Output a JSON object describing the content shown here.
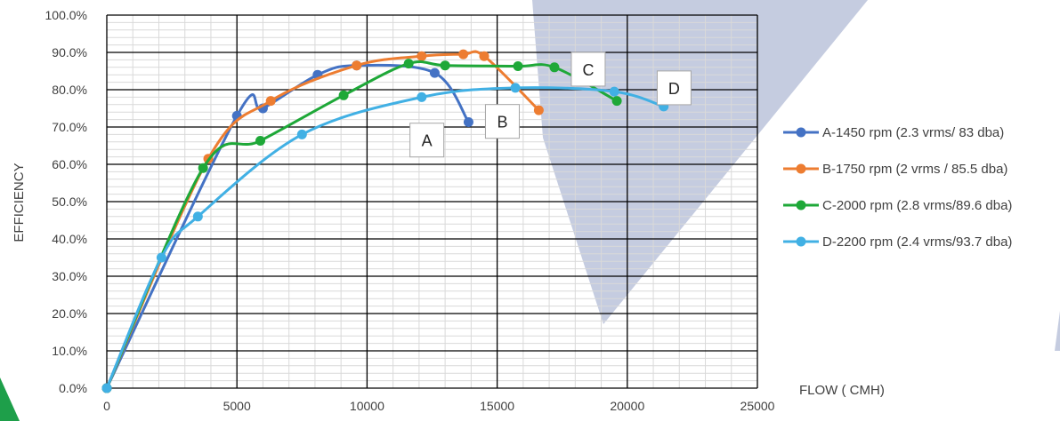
{
  "chart_data": {
    "type": "line",
    "title": "",
    "xlabel": "FLOW ( CMH)",
    "ylabel": "EFFICIENCY",
    "xlim": [
      0,
      25000
    ],
    "ylim": [
      0,
      100
    ],
    "x_ticks": [
      0,
      5000,
      10000,
      15000,
      20000,
      25000
    ],
    "x_tick_labels": [
      "0",
      "5000",
      "10000",
      "15000",
      "20000",
      "25000"
    ],
    "y_ticks": [
      0,
      10,
      20,
      30,
      40,
      50,
      60,
      70,
      80,
      90,
      100
    ],
    "y_tick_labels": [
      "0.0%",
      "10.0%",
      "20.0%",
      "30.0%",
      "40.0%",
      "50.0%",
      "60.0%",
      "70.0%",
      "80.0%",
      "90.0%",
      "100.0%"
    ],
    "grid": true,
    "legend_position": "right",
    "series": [
      {
        "name": "A-1450 rpm (2.3 vrms/ 83 dba)",
        "color": "#4472C4",
        "points": [
          [
            0,
            0
          ],
          [
            5000,
            73
          ],
          [
            6000,
            75
          ],
          [
            8100,
            84
          ],
          [
            9600,
            86.5
          ],
          [
            12600,
            84.5
          ],
          [
            13900,
            71.3
          ]
        ]
      },
      {
        "name": "B-1750 rpm (2 vrms / 85.5 dba)",
        "color": "#ED7D31",
        "points": [
          [
            0,
            0
          ],
          [
            3900,
            61.5
          ],
          [
            6300,
            77
          ],
          [
            9600,
            86.5
          ],
          [
            12100,
            89
          ],
          [
            13700,
            89.5
          ],
          [
            14500,
            89
          ],
          [
            16600,
            74.5
          ]
        ]
      },
      {
        "name": "C-2000 rpm (2.8 vrms/89.6 dba)",
        "color": "#1EA838",
        "points": [
          [
            0,
            0
          ],
          [
            3700,
            59
          ],
          [
            5900,
            66.3
          ],
          [
            9100,
            78.5
          ],
          [
            11600,
            87
          ],
          [
            13000,
            86.5
          ],
          [
            15800,
            86.3
          ],
          [
            17200,
            86
          ],
          [
            19600,
            77
          ]
        ]
      },
      {
        "name": "D-2200 rpm (2.4 vrms/93.7 dba)",
        "color": "#41B0E4",
        "points": [
          [
            0,
            0
          ],
          [
            2100,
            35
          ],
          [
            3500,
            46
          ],
          [
            7500,
            68
          ],
          [
            12100,
            78
          ],
          [
            15700,
            80.5
          ],
          [
            19500,
            79.5
          ],
          [
            21400,
            75.5
          ]
        ]
      }
    ],
    "annotations": [
      {
        "text": "A",
        "x": 12300,
        "y": 66.5
      },
      {
        "text": "B",
        "x": 15200,
        "y": 71.5
      },
      {
        "text": "C",
        "x": 18500,
        "y": 85.5
      },
      {
        "text": "D",
        "x": 21800,
        "y": 80.5
      }
    ]
  }
}
